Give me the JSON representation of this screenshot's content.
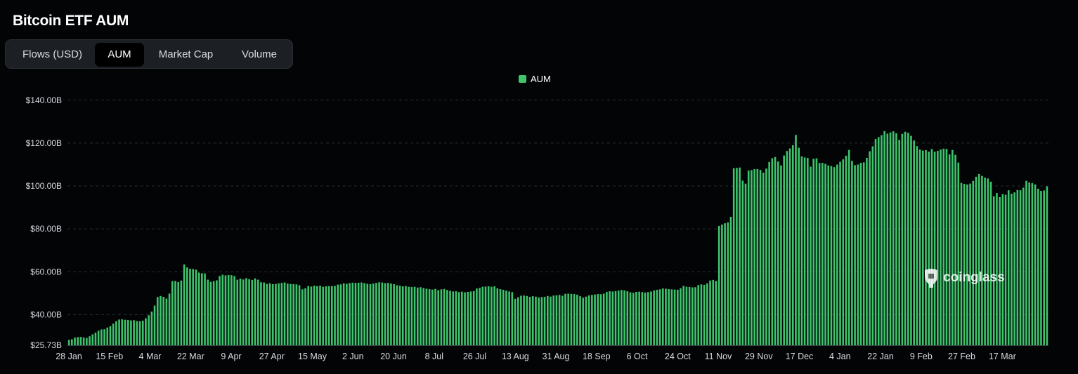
{
  "title": "Bitcoin ETF AUM",
  "tabs": [
    {
      "label": "Flows (USD)",
      "active": false
    },
    {
      "label": "AUM",
      "active": true
    },
    {
      "label": "Market Cap",
      "active": false
    },
    {
      "label": "Volume",
      "active": false
    }
  ],
  "watermark": "coinglass",
  "chart_data": {
    "type": "bar",
    "series": [
      {
        "name": "AUM",
        "color": "#3ec46d"
      }
    ],
    "legend": "top-center",
    "grid": true,
    "ylim": [
      25.73,
      144
    ],
    "yticks": [
      {
        "value": 25.73,
        "label": "$25.73B"
      },
      {
        "value": 40,
        "label": "$40.00B"
      },
      {
        "value": 60,
        "label": "$60.00B"
      },
      {
        "value": 80,
        "label": "$80.00B"
      },
      {
        "value": 100,
        "label": "$100.00B"
      },
      {
        "value": 120,
        "label": "$120.00B"
      },
      {
        "value": 140,
        "label": "$140.00B"
      }
    ],
    "xticks": [
      "28 Jan",
      "15 Feb",
      "4 Mar",
      "22 Mar",
      "9 Apr",
      "27 Apr",
      "15 May",
      "2 Jun",
      "20 Jun",
      "8 Jul",
      "26 Jul",
      "13 Aug",
      "31 Aug",
      "18 Sep",
      "6 Oct",
      "24 Oct",
      "11 Nov",
      "29 Nov",
      "17 Dec",
      "4 Jan",
      "22 Jan",
      "9 Feb",
      "27 Feb",
      "17 Mar"
    ],
    "values": [
      28.2,
      28.5,
      29.3,
      29.5,
      29.6,
      29.3,
      29.1,
      29.9,
      30.8,
      31.6,
      32.5,
      33.1,
      33.2,
      34.0,
      34.6,
      35.8,
      36.9,
      37.7,
      37.8,
      37.6,
      37.5,
      37.3,
      37.4,
      37.0,
      36.9,
      37.2,
      38.3,
      39.7,
      41.4,
      44.2,
      48.2,
      48.7,
      48.3,
      47.5,
      49.8,
      55.6,
      55.7,
      55.2,
      55.9,
      63.4,
      62.0,
      61.4,
      61.3,
      61.0,
      59.6,
      59.3,
      59.2,
      56.3,
      55.3,
      55.6,
      56.0,
      58.0,
      58.6,
      58.3,
      58.5,
      58.4,
      58.0,
      56.3,
      56.8,
      56.4,
      57.0,
      56.5,
      56.2,
      56.9,
      56.3,
      55.1,
      55.0,
      54.3,
      54.6,
      54.2,
      54.3,
      54.6,
      54.8,
      55.0,
      54.5,
      54.3,
      54.2,
      54.1,
      53.7,
      51.8,
      52.3,
      53.3,
      53.1,
      53.5,
      53.3,
      53.5,
      53.0,
      53.2,
      53.3,
      53.3,
      53.4,
      54.0,
      54.1,
      54.6,
      54.4,
      54.7,
      54.9,
      54.8,
      54.9,
      55.0,
      54.7,
      54.4,
      54.2,
      54.5,
      54.8,
      55.1,
      55.0,
      54.7,
      54.8,
      54.5,
      54.2,
      53.7,
      53.5,
      53.2,
      53.3,
      53.0,
      52.9,
      53.0,
      52.6,
      52.8,
      52.4,
      52.1,
      51.9,
      51.7,
      52.0,
      51.4,
      51.8,
      52.0,
      51.5,
      51.1,
      50.8,
      50.9,
      50.5,
      50.7,
      50.4,
      50.6,
      50.8,
      51.0,
      52.2,
      52.5,
      53.0,
      53.1,
      53.2,
      53.0,
      53.2,
      52.3,
      51.9,
      51.6,
      51.2,
      50.8,
      50.5,
      47.4,
      48.1,
      48.8,
      48.9,
      48.7,
      48.3,
      48.6,
      48.4,
      48.0,
      48.2,
      48.3,
      48.7,
      48.4,
      48.9,
      49.0,
      49.2,
      48.8,
      49.7,
      49.8,
      49.7,
      49.6,
      49.3,
      48.6,
      47.9,
      48.4,
      49.0,
      49.2,
      49.4,
      49.6,
      49.5,
      49.8,
      50.6,
      50.9,
      50.8,
      51.0,
      51.2,
      51.5,
      51.3,
      50.9,
      50.4,
      50.2,
      50.6,
      50.7,
      50.5,
      50.3,
      50.5,
      50.8,
      51.3,
      51.6,
      51.8,
      52.2,
      52.1,
      51.9,
      51.8,
      51.7,
      51.6,
      52.3,
      53.4,
      53.0,
      52.9,
      52.7,
      52.8,
      53.8,
      54.1,
      53.9,
      54.6,
      55.9,
      56.2,
      55.7,
      81.4,
      82.0,
      82.6,
      83.0,
      85.6,
      108.3,
      108.4,
      108.6,
      102.5,
      101.1,
      107.2,
      107.4,
      107.9,
      107.9,
      107.5,
      106.2,
      108.1,
      111.2,
      112.9,
      113.5,
      111.4,
      109.6,
      114.2,
      116.3,
      117.5,
      119.0,
      123.8,
      117.8,
      113.8,
      113.3,
      113.1,
      109.0,
      112.7,
      112.9,
      110.7,
      110.8,
      110.3,
      109.6,
      109.3,
      108.8,
      110.0,
      111.3,
      112.4,
      114.1,
      116.8,
      111.7,
      109.7,
      110.0,
      110.8,
      111.0,
      113.1,
      116.2,
      118.5,
      121.9,
      122.8,
      123.7,
      125.6,
      124.4,
      125.0,
      125.5,
      124.6,
      121.5,
      124.3,
      125.3,
      124.8,
      123.4,
      121.2,
      118.6,
      117.0,
      116.5,
      116.7,
      116.0,
      117.2,
      116.0,
      116.4,
      117.0,
      117.4,
      117.3,
      114.7,
      116.8,
      114.5,
      110.9,
      101.4,
      101.0,
      100.7,
      101.1,
      102.4,
      104.3,
      105.6,
      104.7,
      103.9,
      103.5,
      102.0,
      95.2,
      96.7,
      94.8,
      96.2,
      95.9,
      98.0,
      96.4,
      97.0,
      98.1,
      98.0,
      99.2,
      102.4,
      101.6,
      101.3,
      100.7,
      98.7,
      97.7,
      97.9,
      99.8
    ]
  }
}
